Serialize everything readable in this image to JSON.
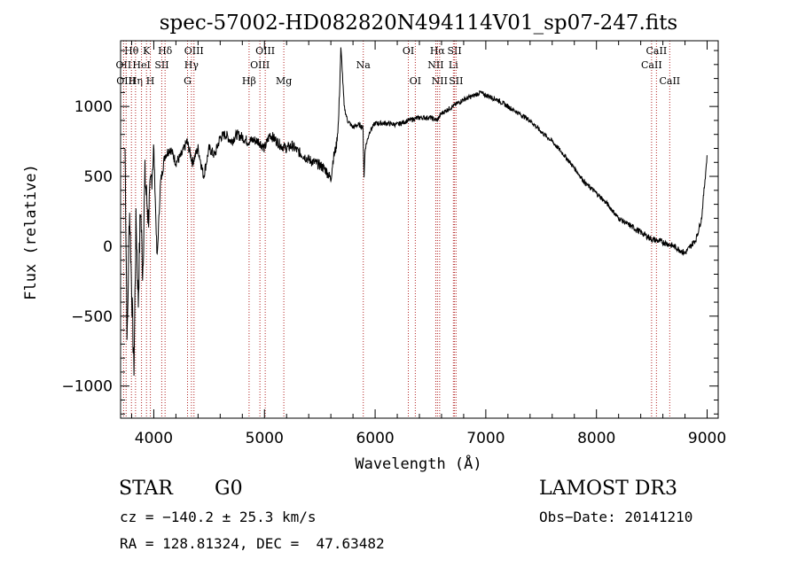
{
  "chart_data": {
    "type": "line",
    "title": "spec-57002-HD082820N494114V01_sp07-247.fits",
    "xlabel": "Wavelength (Å)",
    "ylabel": "Flux (relative)",
    "xlim": [
      3700,
      9100
    ],
    "ylim": [
      -1230,
      1470
    ],
    "x_ticks": [
      4000,
      5000,
      6000,
      7000,
      8000,
      9000
    ],
    "y_ticks": [
      -1000,
      -500,
      0,
      500,
      1000
    ],
    "x_tick_labels": [
      "4000",
      "5000",
      "6000",
      "7000",
      "8000",
      "9000"
    ],
    "y_tick_labels": [
      "−1000",
      "−500",
      "0",
      "500",
      "1000"
    ],
    "series": [
      {
        "name": "flux",
        "x": [
          3740,
          3760,
          3780,
          3800,
          3820,
          3840,
          3860,
          3880,
          3900,
          3920,
          3950,
          3970,
          4000,
          4030,
          4060,
          4100,
          4150,
          4200,
          4250,
          4300,
          4350,
          4400,
          4450,
          4500,
          4550,
          4600,
          4650,
          4700,
          4750,
          4800,
          4850,
          4900,
          4950,
          5000,
          5050,
          5100,
          5150,
          5200,
          5250,
          5300,
          5350,
          5400,
          5450,
          5500,
          5550,
          5600,
          5620,
          5650,
          5670,
          5690,
          5700,
          5720,
          5750,
          5800,
          5850,
          5890,
          5900,
          5910,
          5950,
          6000,
          6100,
          6200,
          6300,
          6400,
          6500,
          6560,
          6600,
          6700,
          6800,
          6900,
          6950,
          7000,
          7100,
          7200,
          7300,
          7400,
          7500,
          7600,
          7700,
          7800,
          7900,
          8000,
          8100,
          8200,
          8300,
          8400,
          8500,
          8600,
          8700,
          8800,
          8850,
          8900,
          8950,
          9000
        ],
        "y": [
          700,
          -700,
          300,
          -300,
          -900,
          200,
          -400,
          300,
          -200,
          500,
          200,
          400,
          700,
          -100,
          450,
          650,
          700,
          600,
          650,
          750,
          600,
          700,
          500,
          700,
          650,
          780,
          800,
          750,
          800,
          780,
          750,
          760,
          750,
          700,
          800,
          760,
          720,
          700,
          720,
          680,
          650,
          620,
          600,
          580,
          550,
          480,
          620,
          720,
          900,
          1400,
          1300,
          1000,
          900,
          850,
          870,
          850,
          500,
          700,
          820,
          880,
          880,
          870,
          900,
          920,
          920,
          900,
          950,
          1000,
          1050,
          1080,
          1100,
          1080,
          1050,
          1000,
          950,
          900,
          820,
          750,
          660,
          560,
          450,
          380,
          300,
          200,
          150,
          100,
          50,
          30,
          0,
          -50,
          0,
          50,
          200,
          650
        ]
      }
    ],
    "spectral_lines": [
      {
        "name": "Hθ",
        "x": 3798,
        "row": 1
      },
      {
        "name": "OII",
        "x": 3727,
        "row": 2
      },
      {
        "name": "OIII",
        "x": 3750,
        "row": 3
      },
      {
        "name": "Hη",
        "x": 3835,
        "row": 3
      },
      {
        "name": "K",
        "x": 3934,
        "row": 1
      },
      {
        "name": "HeI",
        "x": 3889,
        "row": 2
      },
      {
        "name": "H",
        "x": 3969,
        "row": 3
      },
      {
        "name": "SII",
        "x": 4072,
        "row": 2
      },
      {
        "name": "Hδ",
        "x": 4102,
        "row": 1
      },
      {
        "name": "OIII",
        "x": 4363,
        "row": 1
      },
      {
        "name": "Hγ",
        "x": 4340,
        "row": 2
      },
      {
        "name": "G",
        "x": 4305,
        "row": 3
      },
      {
        "name": "Hβ",
        "x": 4861,
        "row": 3
      },
      {
        "name": "OIII",
        "x": 5007,
        "row": 1
      },
      {
        "name": "OIII",
        "x": 4959,
        "row": 2
      },
      {
        "name": "Mg",
        "x": 5175,
        "row": 3
      },
      {
        "name": "Na",
        "x": 5893,
        "row": 2
      },
      {
        "name": "OI",
        "x": 6300,
        "row": 1
      },
      {
        "name": "OI",
        "x": 6363,
        "row": 3
      },
      {
        "name": "Hα",
        "x": 6563,
        "row": 1
      },
      {
        "name": "NII",
        "x": 6548,
        "row": 2
      },
      {
        "name": "NII",
        "x": 6583,
        "row": 3
      },
      {
        "name": "SII",
        "x": 6717,
        "row": 1
      },
      {
        "name": "Li",
        "x": 6707,
        "row": 2
      },
      {
        "name": "SII",
        "x": 6731,
        "row": 3
      },
      {
        "name": "CaII",
        "x": 8542,
        "row": 1
      },
      {
        "name": "CaII",
        "x": 8498,
        "row": 2
      },
      {
        "name": "CaII",
        "x": 8662,
        "row": 3
      }
    ]
  },
  "info": {
    "object_type": "STAR",
    "subclass": "G0",
    "survey": "LAMOST DR3",
    "cz": "cz = −140.2 ± 25.3 km/s",
    "obs_date": "Obs−Date: 20141210",
    "coords": "RA = 128.81324, DEC =  47.63482"
  }
}
